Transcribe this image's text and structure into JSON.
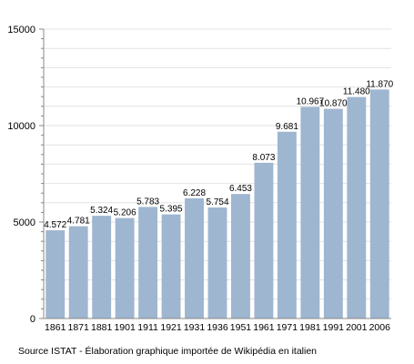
{
  "chart_data": {
    "type": "bar",
    "categories": [
      "1861",
      "1871",
      "1881",
      "1901",
      "1911",
      "1921",
      "1931",
      "1936",
      "1951",
      "1961",
      "1971",
      "1981",
      "1991",
      "2001",
      "2006"
    ],
    "values": [
      4572,
      4781,
      5324,
      5206,
      5783,
      5395,
      6228,
      5754,
      6453,
      8073,
      9681,
      10967,
      10870,
      11480,
      11870
    ],
    "value_labels": [
      "4.572",
      "4.781",
      "5.324",
      "5.206",
      "5.783",
      "5.395",
      "6.228",
      "5.754",
      "6.453",
      "8.073",
      "9.681",
      "10.967",
      "10.870",
      "11.480",
      "11.870"
    ],
    "y_ticks": [
      0,
      5000,
      10000,
      15000
    ],
    "ylim": [
      0,
      15000
    ],
    "grid": true,
    "bar_color": "#9eb6d0",
    "source": "Source ISTAT - Élaboration graphique importée de Wikipédia en italien"
  }
}
